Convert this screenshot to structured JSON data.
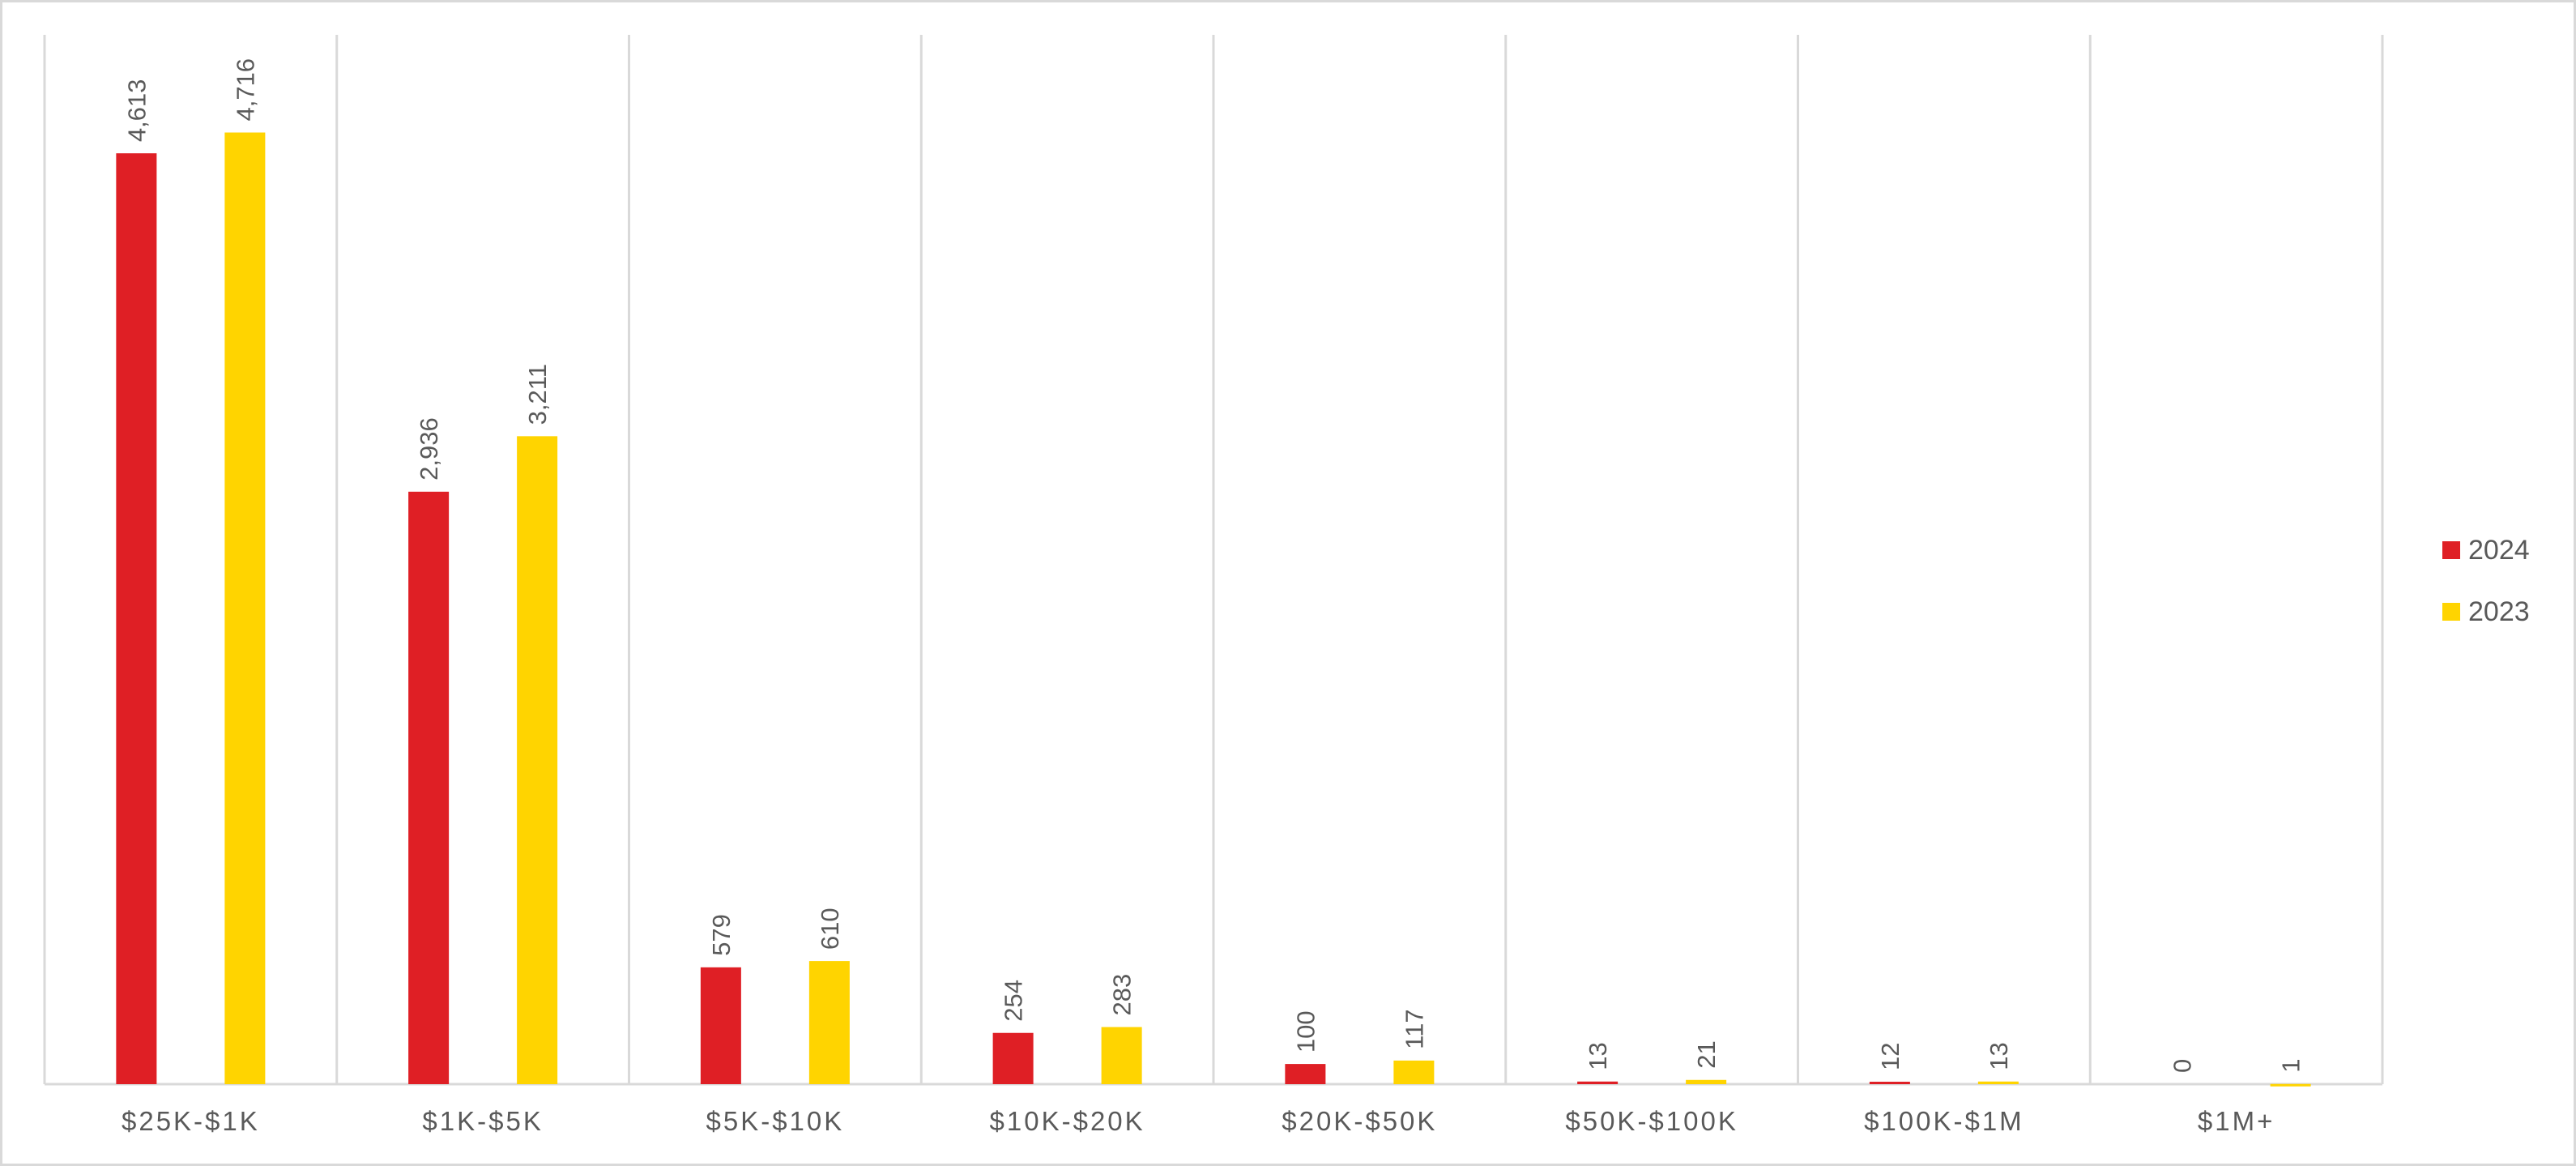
{
  "chart_data": {
    "type": "bar",
    "title": "",
    "xlabel": "",
    "ylabel": "",
    "ylim": [
      0,
      5200
    ],
    "grid": "vertical category separators",
    "legend_position": "right",
    "categories": [
      "$25K-$1K",
      "$1K-$5K",
      "$5K-$10K",
      "$10K-$20K",
      "$20K-$50K",
      "$50K-$100K",
      "$100K-$1M",
      "$1M+"
    ],
    "series": [
      {
        "name": "2024",
        "color": "#df1f25",
        "values": [
          4613,
          2936,
          579,
          254,
          100,
          13,
          12,
          0
        ],
        "labels": [
          "4,613",
          "2,936",
          "579",
          "254",
          "100",
          "13",
          "12",
          "0"
        ]
      },
      {
        "name": "2023",
        "color": "#ffd400",
        "values": [
          4716,
          3211,
          610,
          283,
          117,
          21,
          13,
          1
        ],
        "labels": [
          "4,716",
          "3,211",
          "610",
          "283",
          "117",
          "21",
          "13",
          "1"
        ]
      }
    ]
  }
}
